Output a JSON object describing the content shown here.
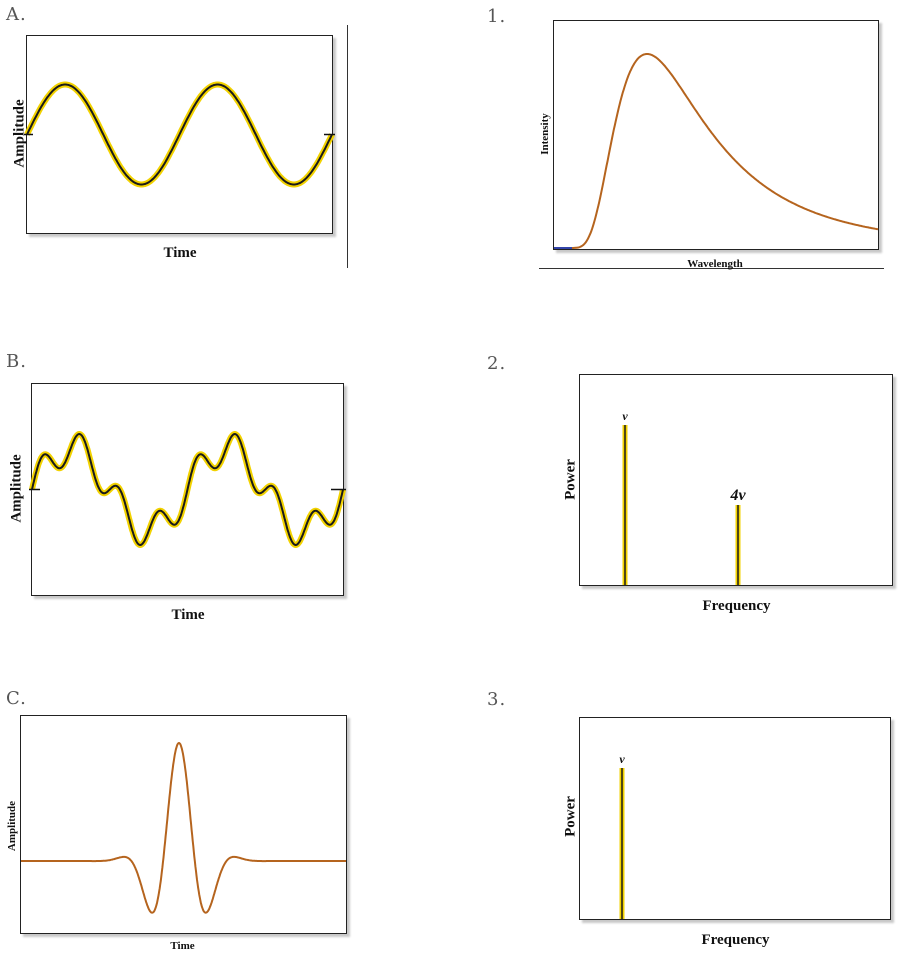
{
  "panels": {
    "A": {
      "label": "A.",
      "xlabel": "Time",
      "ylabel": "Amplitude"
    },
    "B": {
      "label": "B.",
      "xlabel": "Time",
      "ylabel": "Amplitude"
    },
    "C": {
      "label": "C.",
      "xlabel": "Time",
      "ylabel": "Amplitude"
    },
    "one": {
      "label": "1.",
      "xlabel": "Wavelength",
      "ylabel": "Intensity"
    },
    "two": {
      "label": "2.",
      "xlabel": "Frequency",
      "ylabel": "Power"
    },
    "three": {
      "label": "3.",
      "xlabel": "Frequency",
      "ylabel": "Power"
    }
  },
  "colors": {
    "wave_core": "#1a1a1a",
    "wave_glow": "#f2d200",
    "curve": "#b5641e",
    "spike_glow": "#f2d200"
  },
  "chart_data": [
    {
      "id": "A",
      "type": "line",
      "xlabel": "Time",
      "ylabel": "Amplitude",
      "series": [
        {
          "function": "sine",
          "cycles": 2,
          "amplitude": 1
        }
      ],
      "grid": false
    },
    {
      "id": "B",
      "type": "line",
      "xlabel": "Time",
      "ylabel": "Amplitude",
      "series": [
        {
          "function": "sine + 0.4*sine(4x)",
          "cycles": 2
        }
      ],
      "grid": false
    },
    {
      "id": "C",
      "type": "line",
      "xlabel": "Time",
      "ylabel": "Amplitude",
      "series": [
        {
          "function": "wave packet",
          "peak_position": 0.5
        }
      ],
      "grid": false
    },
    {
      "id": "1",
      "type": "line",
      "xlabel": "Wavelength",
      "ylabel": "Intensity",
      "series": [
        {
          "function": "blackbody",
          "peak_position": 0.45
        }
      ],
      "grid": false
    },
    {
      "id": "2",
      "type": "bar",
      "xlabel": "Frequency",
      "ylabel": "Power",
      "categories": [
        "ν",
        "4ν"
      ],
      "values": [
        1.0,
        0.5
      ],
      "grid": false
    },
    {
      "id": "3",
      "type": "bar",
      "xlabel": "Frequency",
      "ylabel": "Power",
      "categories": [
        "ν"
      ],
      "values": [
        1.0
      ],
      "grid": false
    }
  ]
}
